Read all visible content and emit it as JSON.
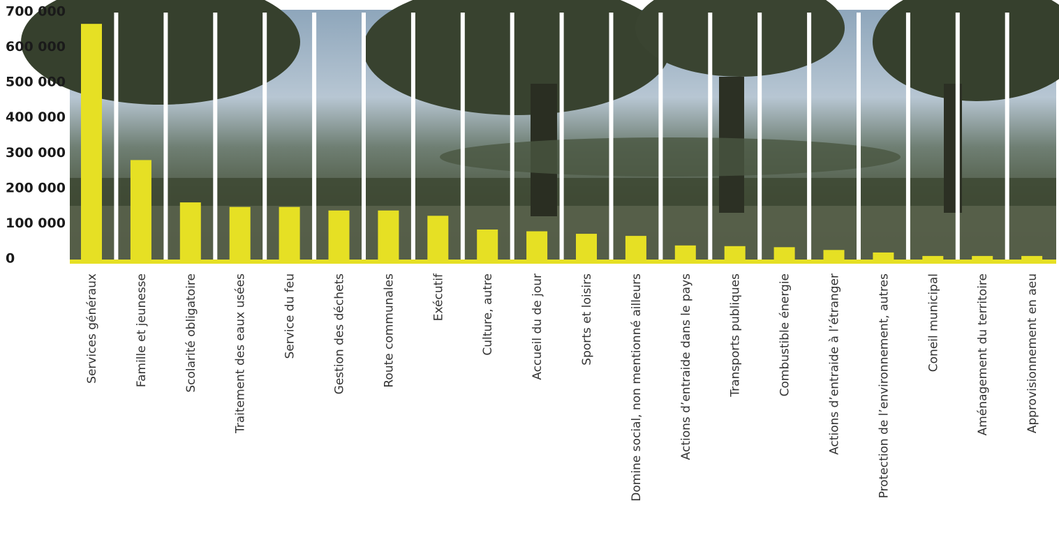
{
  "chart_data": {
    "type": "bar",
    "title": "",
    "xlabel": "",
    "ylabel": "",
    "ylim": [
      0,
      700000
    ],
    "yticks": [
      0,
      100000,
      200000,
      300000,
      400000,
      500000,
      600000,
      700000
    ],
    "ytick_labels": [
      "0",
      "100 000",
      "200 000",
      "300 000",
      "400 000",
      "500 000",
      "600 000",
      "700 000"
    ],
    "grid": false,
    "legend": "none",
    "categories": [
      "Services généraux",
      "Famille et jeunesse",
      "Scolarité obligatoire",
      "Traitement des eaux usées",
      "Service du feu",
      "Gestion des déchets",
      "Route communales",
      "Exécutif",
      "Culture, autre",
      "Accueil du de jour",
      "Sports et loisirs",
      "Domine social, non mentionné ailleurs",
      "Actions d’entraide dans le pays",
      "Transports publiques",
      "Combustible énergie",
      "Actions d’entraide à l’étranger",
      "Protection de l’environnement, autres",
      "Coneil municipal",
      "Aménagement du territoire",
      "Approvisionnement en aeu"
    ],
    "values": [
      668000,
      282000,
      162000,
      149000,
      149000,
      139000,
      139000,
      124000,
      85000,
      80000,
      73000,
      67000,
      40000,
      38000,
      35000,
      27000,
      20000,
      10000,
      10000,
      10000
    ],
    "colors": {
      "bar": "#e6e024",
      "baseline": "#e6e024",
      "separator": "#ffffff",
      "sky": "#9fb4c6",
      "foliage": "#3b4530",
      "field": "#5c6650",
      "tick_text": "#1a1a1a",
      "category_text": "#333333"
    },
    "background": "photo-landscape-trees"
  }
}
